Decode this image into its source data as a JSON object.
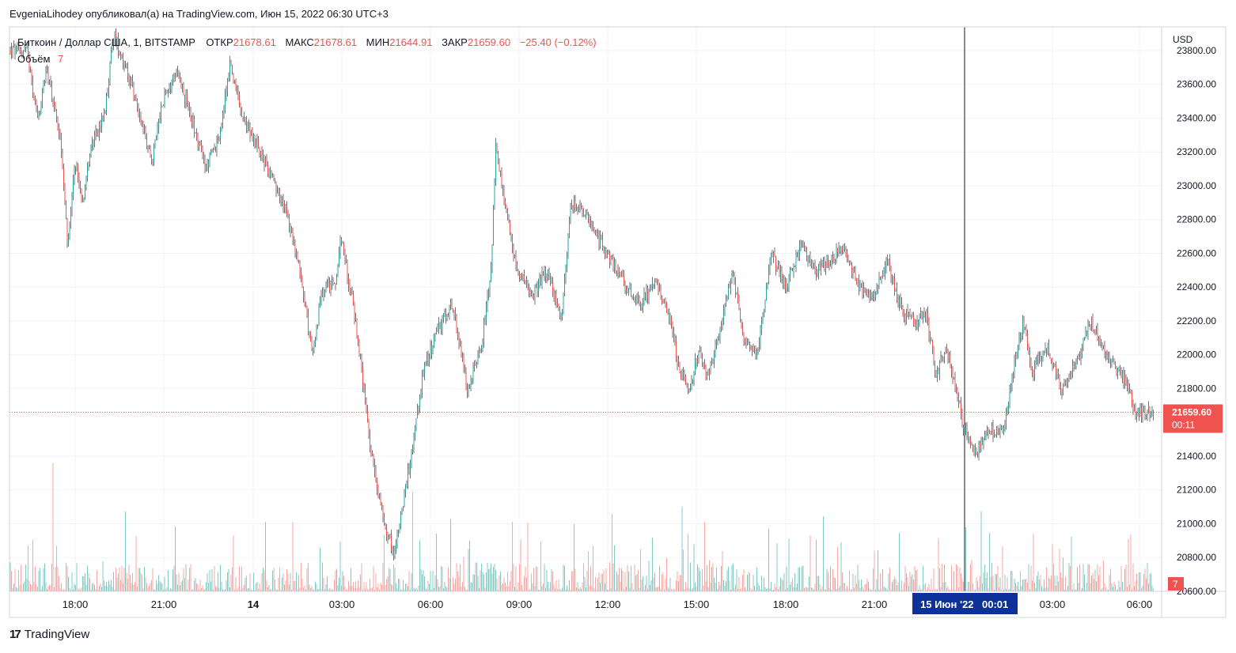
{
  "header": {
    "publisher_line": "EvgeniaLihodey опубликовал(а) на TradingView.com, Июн 15, 2022 06:30 UTC+3"
  },
  "legend": {
    "symbol": "Биткоин / Доллар США, 1, BITSTAMP",
    "open_label": "ОТКР",
    "open_value": "21678.61",
    "high_label": "МАКС",
    "high_value": "21678.61",
    "low_label": "МИН",
    "low_value": "21644.91",
    "close_label": "ЗАКР",
    "close_value": "21659.60",
    "change": "−25.40 (−0.12%)",
    "volume_label": "Объём",
    "volume_value": "7"
  },
  "price_axis": {
    "currency": "USD"
  },
  "last_price_tag": {
    "price": "21659.60",
    "countdown": "00:11"
  },
  "volume_tag": {
    "value": "7"
  },
  "crosshair_tag": {
    "date": "15 Июн '22",
    "time": "00:01"
  },
  "footer": {
    "brand": "TradingView"
  },
  "colors": {
    "up": "#26a69a",
    "down": "#ef5350",
    "wick": "#131722",
    "vol_up": "#80cbc4",
    "vol_down": "#f7a8a6",
    "grid": "#f0f3fa",
    "axis": "#d1d4dc",
    "last_price_bg": "#ef5350",
    "crosshair_tag_bg": "#0c3299"
  },
  "chart_data": {
    "type": "candlestick",
    "interval": "1 minute",
    "x_ticks": [
      "18:00",
      "21:00",
      "14",
      "03:00",
      "06:00",
      "09:00",
      "12:00",
      "15:00",
      "18:00",
      "21:00",
      "03:00",
      "06:00"
    ],
    "y_ticks": [
      "23800.00",
      "23600.00",
      "23400.00",
      "23200.00",
      "23000.00",
      "22800.00",
      "22600.00",
      "22400.00",
      "22200.00",
      "22000.00",
      "21800.00",
      "21400.00",
      "21200.00",
      "21000.00",
      "20800.00",
      "20600.00"
    ],
    "ylim": [
      20600,
      23940
    ],
    "last_price": 21659.6,
    "price_path": [
      {
        "t": "16:20",
        "p": 23800
      },
      {
        "t": "16:30",
        "p": 23600
      },
      {
        "t": "16:45",
        "p": 23380
      },
      {
        "t": "17:00",
        "p": 23700
      },
      {
        "t": "17:15",
        "p": 23500
      },
      {
        "t": "17:30",
        "p": 23260
      },
      {
        "t": "17:45",
        "p": 22620
      },
      {
        "t": "18:00",
        "p": 23150
      },
      {
        "t": "18:15",
        "p": 22900
      },
      {
        "t": "18:30",
        "p": 23200
      },
      {
        "t": "19:00",
        "p": 23420
      },
      {
        "t": "19:20",
        "p": 23900
      },
      {
        "t": "19:45",
        "p": 23700
      },
      {
        "t": "20:15",
        "p": 23400
      },
      {
        "t": "20:40",
        "p": 23150
      },
      {
        "t": "21:00",
        "p": 23500
      },
      {
        "t": "21:30",
        "p": 23690
      },
      {
        "t": "22:00",
        "p": 23400
      },
      {
        "t": "22:30",
        "p": 23100
      },
      {
        "t": "23:00",
        "p": 23300
      },
      {
        "t": "23:20",
        "p": 23730
      },
      {
        "t": "23:45",
        "p": 23400
      },
      {
        "t": "00:15",
        "p": 23250
      },
      {
        "t": "00:45",
        "p": 23050
      },
      {
        "t": "01:15",
        "p": 22850
      },
      {
        "t": "01:45",
        "p": 22500
      },
      {
        "t": "02:10",
        "p": 22000
      },
      {
        "t": "02:30",
        "p": 22350
      },
      {
        "t": "03:00",
        "p": 22450
      },
      {
        "t": "03:10",
        "p": 22700
      },
      {
        "t": "03:40",
        "p": 22200
      },
      {
        "t": "04:10",
        "p": 21450
      },
      {
        "t": "04:40",
        "p": 21000
      },
      {
        "t": "05:00",
        "p": 20830
      },
      {
        "t": "05:20",
        "p": 21150
      },
      {
        "t": "05:40",
        "p": 21500
      },
      {
        "t": "06:00",
        "p": 21900
      },
      {
        "t": "06:30",
        "p": 22150
      },
      {
        "t": "07:00",
        "p": 22300
      },
      {
        "t": "07:30",
        "p": 21800
      },
      {
        "t": "08:00",
        "p": 22050
      },
      {
        "t": "08:20",
        "p": 22500
      },
      {
        "t": "08:30",
        "p": 23250
      },
      {
        "t": "08:50",
        "p": 22850
      },
      {
        "t": "09:15",
        "p": 22500
      },
      {
        "t": "09:45",
        "p": 22350
      },
      {
        "t": "10:15",
        "p": 22500
      },
      {
        "t": "10:45",
        "p": 22200
      },
      {
        "t": "11:05",
        "p": 22900
      },
      {
        "t": "11:30",
        "p": 22850
      },
      {
        "t": "12:00",
        "p": 22700
      },
      {
        "t": "12:30",
        "p": 22550
      },
      {
        "t": "13:00",
        "p": 22400
      },
      {
        "t": "13:30",
        "p": 22300
      },
      {
        "t": "14:00",
        "p": 22450
      },
      {
        "t": "14:30",
        "p": 22200
      },
      {
        "t": "14:50",
        "p": 21900
      },
      {
        "t": "15:10",
        "p": 21780
      },
      {
        "t": "15:30",
        "p": 22050
      },
      {
        "t": "15:45",
        "p": 21850
      },
      {
        "t": "16:15",
        "p": 22150
      },
      {
        "t": "16:40",
        "p": 22500
      },
      {
        "t": "17:00",
        "p": 22100
      },
      {
        "t": "17:30",
        "p": 22000
      },
      {
        "t": "18:00",
        "p": 22600
      },
      {
        "t": "18:30",
        "p": 22400
      },
      {
        "t": "19:00",
        "p": 22650
      },
      {
        "t": "19:30",
        "p": 22500
      },
      {
        "t": "20:00",
        "p": 22550
      },
      {
        "t": "20:30",
        "p": 22650
      },
      {
        "t": "21:00",
        "p": 22400
      },
      {
        "t": "21:30",
        "p": 22350
      },
      {
        "t": "22:00",
        "p": 22550
      },
      {
        "t": "22:30",
        "p": 22250
      },
      {
        "t": "23:00",
        "p": 22200
      },
      {
        "t": "23:20",
        "p": 22250
      },
      {
        "t": "23:40",
        "p": 21880
      },
      {
        "t": "00:01",
        "p": 22050
      },
      {
        "t": "00:20",
        "p": 21800
      },
      {
        "t": "00:40",
        "p": 21550
      },
      {
        "t": "01:00",
        "p": 21420
      },
      {
        "t": "01:30",
        "p": 21550
      },
      {
        "t": "02:00",
        "p": 21550
      },
      {
        "t": "02:20",
        "p": 21900
      },
      {
        "t": "02:40",
        "p": 22200
      },
      {
        "t": "03:00",
        "p": 21900
      },
      {
        "t": "03:30",
        "p": 22050
      },
      {
        "t": "04:00",
        "p": 21800
      },
      {
        "t": "04:30",
        "p": 21950
      },
      {
        "t": "05:00",
        "p": 22200
      },
      {
        "t": "05:30",
        "p": 22000
      },
      {
        "t": "06:00",
        "p": 21900
      },
      {
        "t": "06:20",
        "p": 21800
      },
      {
        "t": "06:30",
        "p": 21659.6
      }
    ]
  }
}
